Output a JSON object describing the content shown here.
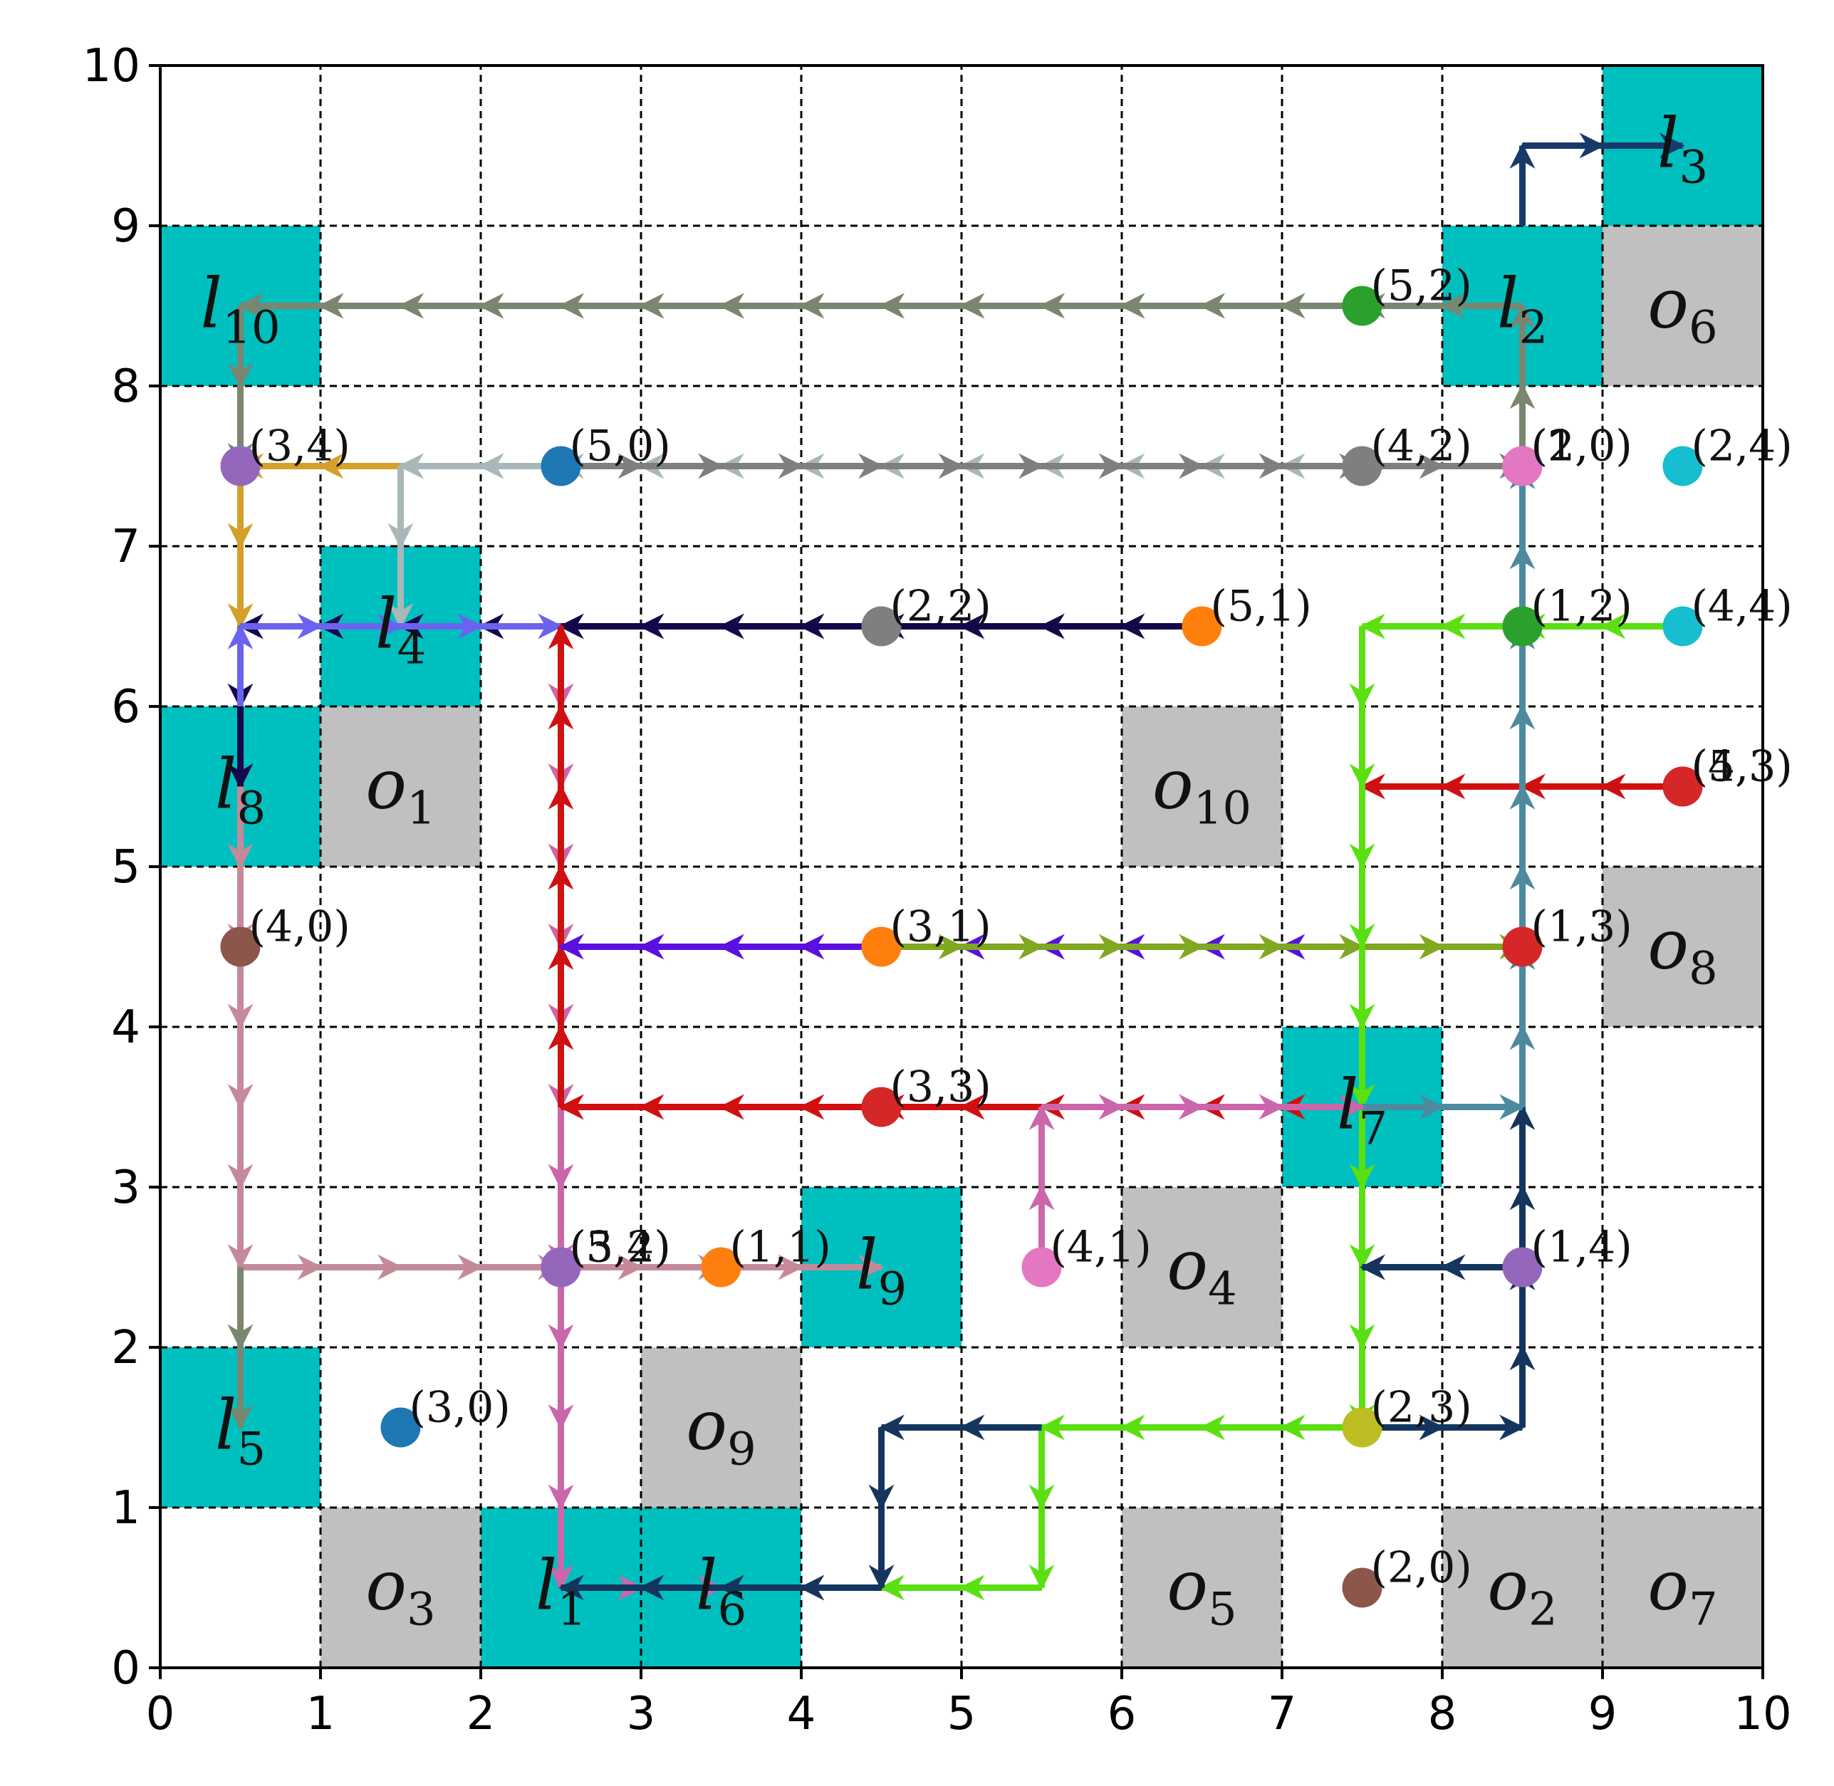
{
  "chart_data": {
    "type": "grid-path-diagram",
    "xlim": [
      0,
      10
    ],
    "ylim": [
      0,
      10
    ],
    "xticks": [
      "0",
      "1",
      "2",
      "3",
      "4",
      "5",
      "6",
      "7",
      "8",
      "9",
      "10"
    ],
    "yticks": [
      "0",
      "1",
      "2",
      "3",
      "4",
      "5",
      "6",
      "7",
      "8",
      "9",
      "10"
    ],
    "grid": true,
    "colors": {
      "landmark": "#00bfbf",
      "obstacle": "#c0c0c0",
      "grid": "#000000"
    },
    "landmarks": [
      {
        "name": "l",
        "sub": "1",
        "cells": [
          [
            2,
            0
          ]
        ],
        "label_at": [
          2.5,
          0.5
        ]
      },
      {
        "name": "l",
        "sub": "2",
        "cells": [
          [
            8,
            8
          ]
        ],
        "label_at": [
          8.5,
          8.5
        ]
      },
      {
        "name": "l",
        "sub": "3",
        "cells": [
          [
            9,
            9
          ]
        ],
        "label_at": [
          9.5,
          9.5
        ]
      },
      {
        "name": "l",
        "sub": "4",
        "cells": [
          [
            1,
            6
          ]
        ],
        "label_at": [
          1.5,
          6.5
        ]
      },
      {
        "name": "l",
        "sub": "5",
        "cells": [
          [
            0,
            1
          ]
        ],
        "label_at": [
          0.5,
          1.5
        ]
      },
      {
        "name": "l",
        "sub": "6",
        "cells": [
          [
            3,
            0
          ]
        ],
        "label_at": [
          3.5,
          0.5
        ]
      },
      {
        "name": "l",
        "sub": "7",
        "cells": [
          [
            7,
            3
          ]
        ],
        "label_at": [
          7.5,
          3.5
        ]
      },
      {
        "name": "l",
        "sub": "8",
        "cells": [
          [
            0,
            5
          ]
        ],
        "label_at": [
          0.5,
          5.5
        ]
      },
      {
        "name": "l",
        "sub": "9",
        "cells": [
          [
            4,
            2
          ]
        ],
        "label_at": [
          4.5,
          2.5
        ]
      },
      {
        "name": "l",
        "sub": "10",
        "cells": [
          [
            0,
            8
          ]
        ],
        "label_at": [
          0.5,
          8.5
        ]
      }
    ],
    "obstacles": [
      {
        "name": "o",
        "sub": "1",
        "cells": [
          [
            1,
            5
          ]
        ],
        "label_at": [
          1.5,
          5.5
        ]
      },
      {
        "name": "o",
        "sub": "2",
        "cells": [
          [
            8,
            0
          ]
        ],
        "label_at": [
          8.5,
          0.5
        ]
      },
      {
        "name": "o",
        "sub": "3",
        "cells": [
          [
            1,
            0
          ]
        ],
        "label_at": [
          1.5,
          0.5
        ]
      },
      {
        "name": "o",
        "sub": "4",
        "cells": [
          [
            6,
            2
          ]
        ],
        "label_at": [
          6.5,
          2.5
        ]
      },
      {
        "name": "o",
        "sub": "5",
        "cells": [
          [
            6,
            0
          ]
        ],
        "label_at": [
          6.5,
          0.5
        ]
      },
      {
        "name": "o",
        "sub": "6",
        "cells": [
          [
            9,
            8
          ]
        ],
        "label_at": [
          9.5,
          8.5
        ]
      },
      {
        "name": "o",
        "sub": "7",
        "cells": [
          [
            9,
            0
          ]
        ],
        "label_at": [
          9.5,
          0.5
        ]
      },
      {
        "name": "o",
        "sub": "8",
        "cells": [
          [
            9,
            4
          ]
        ],
        "label_at": [
          9.5,
          4.5
        ]
      },
      {
        "name": "o",
        "sub": "9",
        "cells": [
          [
            3,
            1
          ]
        ],
        "label_at": [
          3.5,
          1.5
        ]
      },
      {
        "name": "o",
        "sub": "10",
        "cells": [
          [
            6,
            5
          ]
        ],
        "label_at": [
          6.5,
          5.5
        ]
      }
    ],
    "points": [
      {
        "label": "(5,2)",
        "x": 7.5,
        "y": 8.5,
        "color": "#2ca02c"
      },
      {
        "label": "(3,4)",
        "x": 0.5,
        "y": 7.5,
        "color": "#9467bd"
      },
      {
        "label": "(5,0)",
        "x": 2.5,
        "y": 7.5,
        "color": "#1f77b4"
      },
      {
        "label": "(4,2)",
        "x": 7.5,
        "y": 7.5,
        "color": "#7f7f7f"
      },
      {
        "label": "(2,0)",
        "x": 8.5,
        "y": 7.5,
        "color": "#e377c2"
      },
      {
        "label": "(1,0)",
        "x": 8.5,
        "y": 7.5,
        "color": "#e377c2"
      },
      {
        "label": "(2,4)",
        "x": 9.5,
        "y": 7.5,
        "color": "#17becf"
      },
      {
        "label": "(2,2)",
        "x": 4.5,
        "y": 6.5,
        "color": "#7f7f7f"
      },
      {
        "label": "(5,1)",
        "x": 6.5,
        "y": 6.5,
        "color": "#ff7f0e"
      },
      {
        "label": "(1,2)",
        "x": 8.5,
        "y": 6.5,
        "color": "#2ca02c"
      },
      {
        "label": "(4,4)",
        "x": 9.5,
        "y": 6.5,
        "color": "#17becf"
      },
      {
        "label": "(5,3)",
        "x": 9.5,
        "y": 5.5,
        "color": "#d62728"
      },
      {
        "label": "(4,3)",
        "x": 9.5,
        "y": 5.5,
        "color": "#d62728"
      },
      {
        "label": "(4,0)",
        "x": 0.5,
        "y": 4.5,
        "color": "#8c564b"
      },
      {
        "label": "(3,1)",
        "x": 4.5,
        "y": 4.5,
        "color": "#ff7f0e"
      },
      {
        "label": "(1,3)",
        "x": 8.5,
        "y": 4.5,
        "color": "#d62728"
      },
      {
        "label": "(3,3)",
        "x": 4.5,
        "y": 3.5,
        "color": "#d62728"
      },
      {
        "label": "(5,4)",
        "x": 2.5,
        "y": 2.5,
        "color": "#9467bd"
      },
      {
        "label": "(3,2)",
        "x": 2.5,
        "y": 2.5,
        "color": "#9467bd"
      },
      {
        "label": "(1,1)",
        "x": 3.5,
        "y": 2.5,
        "color": "#ff7f0e"
      },
      {
        "label": "(4,1)",
        "x": 5.5,
        "y": 2.5,
        "color": "#e377c2"
      },
      {
        "label": "(1,4)",
        "x": 8.5,
        "y": 2.5,
        "color": "#9467bd"
      },
      {
        "label": "(3,0)",
        "x": 1.5,
        "y": 1.5,
        "color": "#1f77b4"
      },
      {
        "label": "(2,3)",
        "x": 7.5,
        "y": 1.5,
        "color": "#bcbd22"
      },
      {
        "label": "(2,0)",
        "x": 7.5,
        "y": 0.5,
        "color": "#8c564b"
      }
    ],
    "paths": [
      {
        "color": "#5e7fb5",
        "points": [
          [
            7.5,
            8.5
          ],
          [
            0.5,
            8.5
          ]
        ]
      },
      {
        "color": "#7a8670",
        "points": [
          [
            8.5,
            7.5
          ],
          [
            8.5,
            8.5
          ],
          [
            7.5,
            8.5
          ],
          [
            0.5,
            8.5
          ],
          [
            0.5,
            7.5
          ]
        ]
      },
      {
        "color": "#d4a02a",
        "points": [
          [
            2.5,
            7.5
          ],
          [
            0.5,
            7.5
          ],
          [
            0.5,
            6.5
          ]
        ]
      },
      {
        "color": "#a8b8b8",
        "points": [
          [
            7.5,
            7.5
          ],
          [
            2.5,
            7.5
          ],
          [
            1.5,
            7.5
          ],
          [
            1.5,
            6.5
          ]
        ]
      },
      {
        "color": "#7f7f7f",
        "points": [
          [
            2.5,
            7.5
          ],
          [
            8.5,
            7.5
          ]
        ]
      },
      {
        "color": "#14355e",
        "points": [
          [
            8.5,
            2.5
          ],
          [
            8.5,
            3.5
          ]
        ]
      },
      {
        "color": "#173a6b",
        "points": [
          [
            8.5,
            9.0
          ],
          [
            8.5,
            9.5
          ],
          [
            9.5,
            9.5
          ]
        ]
      },
      {
        "color": "#15074a",
        "points": [
          [
            6.5,
            6.5
          ],
          [
            0.5,
            6.5
          ],
          [
            0.5,
            5.5
          ]
        ]
      },
      {
        "color": "#6b63f0",
        "points": [
          [
            0.5,
            6.0
          ],
          [
            0.5,
            6.5
          ],
          [
            2.5,
            6.5
          ]
        ]
      },
      {
        "color": "#cc66aa",
        "points": [
          [
            2.5,
            6.5
          ],
          [
            2.5,
            2.5
          ],
          [
            2.5,
            0.5
          ],
          [
            3.5,
            0.5
          ]
        ]
      },
      {
        "color": "#d01010",
        "points": [
          [
            7.5,
            3.5
          ],
          [
            2.5,
            3.5
          ],
          [
            2.5,
            6.5
          ]
        ]
      },
      {
        "color": "#d01010",
        "points": [
          [
            9.5,
            5.5
          ],
          [
            7.5,
            5.5
          ]
        ]
      },
      {
        "color": "#5a10e0",
        "points": [
          [
            4.5,
            4.5
          ],
          [
            2.5,
            4.5
          ]
        ]
      },
      {
        "color": "#5a10e0",
        "points": [
          [
            7.5,
            4.5
          ],
          [
            5.0,
            4.5
          ]
        ]
      },
      {
        "color": "#80a820",
        "points": [
          [
            4.5,
            4.5
          ],
          [
            8.5,
            4.5
          ]
        ]
      },
      {
        "color": "#5ae010",
        "points": [
          [
            9.5,
            6.5
          ],
          [
            7.5,
            6.5
          ],
          [
            7.5,
            1.5
          ],
          [
            5.5,
            1.5
          ],
          [
            5.5,
            0.5
          ],
          [
            3.5,
            0.5
          ]
        ]
      },
      {
        "color": "#4d8aa0",
        "points": [
          [
            7.5,
            3.5
          ],
          [
            8.5,
            3.5
          ],
          [
            8.5,
            7.5
          ]
        ]
      },
      {
        "color": "#cc66aa",
        "points": [
          [
            5.5,
            2.5
          ],
          [
            5.5,
            3.5
          ],
          [
            7.5,
            3.5
          ]
        ]
      },
      {
        "color": "#c48a9a",
        "points": [
          [
            0.5,
            5.5
          ],
          [
            0.5,
            2.5
          ],
          [
            2.5,
            2.5
          ]
        ]
      },
      {
        "color": "#7a8670",
        "points": [
          [
            0.5,
            2.5
          ],
          [
            0.5,
            1.5
          ]
        ]
      },
      {
        "color": "#c48a9a",
        "points": [
          [
            2.5,
            2.5
          ],
          [
            4.5,
            2.5
          ]
        ]
      },
      {
        "color": "#14355e",
        "points": [
          [
            7.5,
            1.5
          ],
          [
            8.5,
            1.5
          ],
          [
            8.5,
            2.5
          ],
          [
            7.5,
            2.5
          ]
        ]
      },
      {
        "color": "#14355e",
        "points": [
          [
            5.5,
            1.5
          ],
          [
            4.5,
            1.5
          ],
          [
            4.5,
            0.5
          ],
          [
            2.5,
            0.5
          ]
        ]
      }
    ]
  }
}
